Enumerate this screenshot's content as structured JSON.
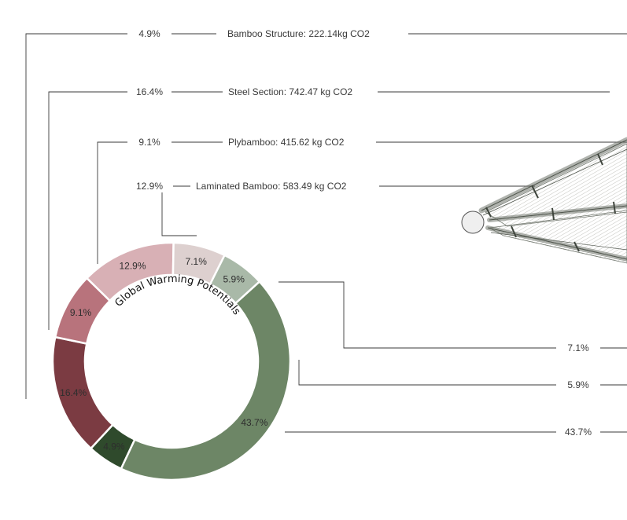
{
  "chart_data": {
    "type": "pie",
    "title": "Global Warming Potentials",
    "slices": [
      {
        "label": "4.9%",
        "value": 4.9,
        "color": "#2f4a2c"
      },
      {
        "label": "16.4%",
        "value": 16.4,
        "color": "#7b3b42"
      },
      {
        "label": "9.1%",
        "value": 9.1,
        "color": "#b8737c"
      },
      {
        "label": "12.9%",
        "value": 12.9,
        "color": "#d8b0b5"
      },
      {
        "label": "7.1%",
        "value": 7.1,
        "color": "#ddd0cf"
      },
      {
        "label": "5.9%",
        "value": 5.9,
        "color": "#a9b9a8"
      },
      {
        "label": "43.7%",
        "value": 43.7,
        "color": "#6d8666"
      }
    ],
    "annotations": [
      {
        "percent": "4.9%",
        "text": "Bamboo Structure: 222.14kg CO2"
      },
      {
        "percent": "16.4%",
        "text": "Steel Section: 742.47 kg CO2"
      },
      {
        "percent": "9.1%",
        "text": "Plybamboo: 415.62 kg CO2"
      },
      {
        "percent": "12.9%",
        "text": "Laminated Bamboo: 583.49 kg CO2"
      },
      {
        "percent": "7.1%",
        "text": ""
      },
      {
        "percent": "5.9%",
        "text": ""
      },
      {
        "percent": "43.7%",
        "text": ""
      }
    ]
  },
  "colors": {
    "line": "#3a3a3a",
    "structure_fill": "#d9d6cc",
    "structure_stroke": "#6f756c",
    "node_fill": "#efefef"
  },
  "illustration": {
    "name": "bamboo-roof-structure-icon"
  }
}
